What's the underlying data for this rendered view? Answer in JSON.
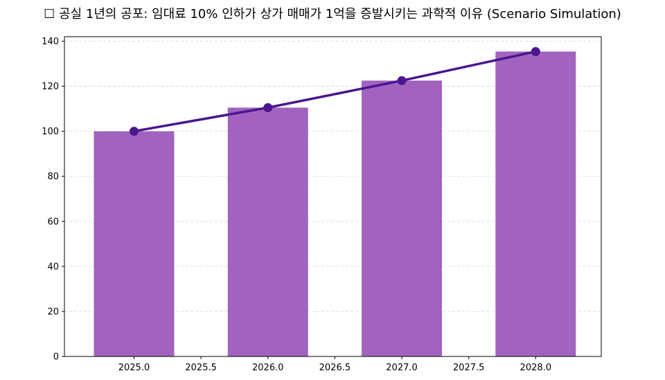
{
  "chart_data": {
    "type": "bar",
    "title": "☐ 공실 1년의 공포: 임대료 10% 인하가 상가 매매가 1억을 증발시키는 과학적 이유 (Scenario Simulation)",
    "xlabel": "",
    "ylabel": "",
    "x": [
      2025,
      2026,
      2027,
      2028
    ],
    "values": [
      100,
      110.5,
      122.5,
      135.4
    ],
    "line_values": [
      100,
      110.5,
      122.5,
      135.4
    ],
    "xlim": [
      2024.48,
      2028.49
    ],
    "ylim": [
      0,
      142
    ],
    "xticks": [
      "2025.0",
      "2025.5",
      "2026.0",
      "2026.5",
      "2027.0",
      "2027.5",
      "2028.0"
    ],
    "xtick_values": [
      2025,
      2025.5,
      2026,
      2026.5,
      2027,
      2027.5,
      2028
    ],
    "yticks": [
      0,
      20,
      40,
      60,
      80,
      100,
      120,
      140
    ],
    "bar_width": 0.6,
    "grid": "y-dashed",
    "colors": {
      "bar": "#a163bd",
      "line": "#4b1690",
      "grid": "#d4d4d4"
    }
  }
}
